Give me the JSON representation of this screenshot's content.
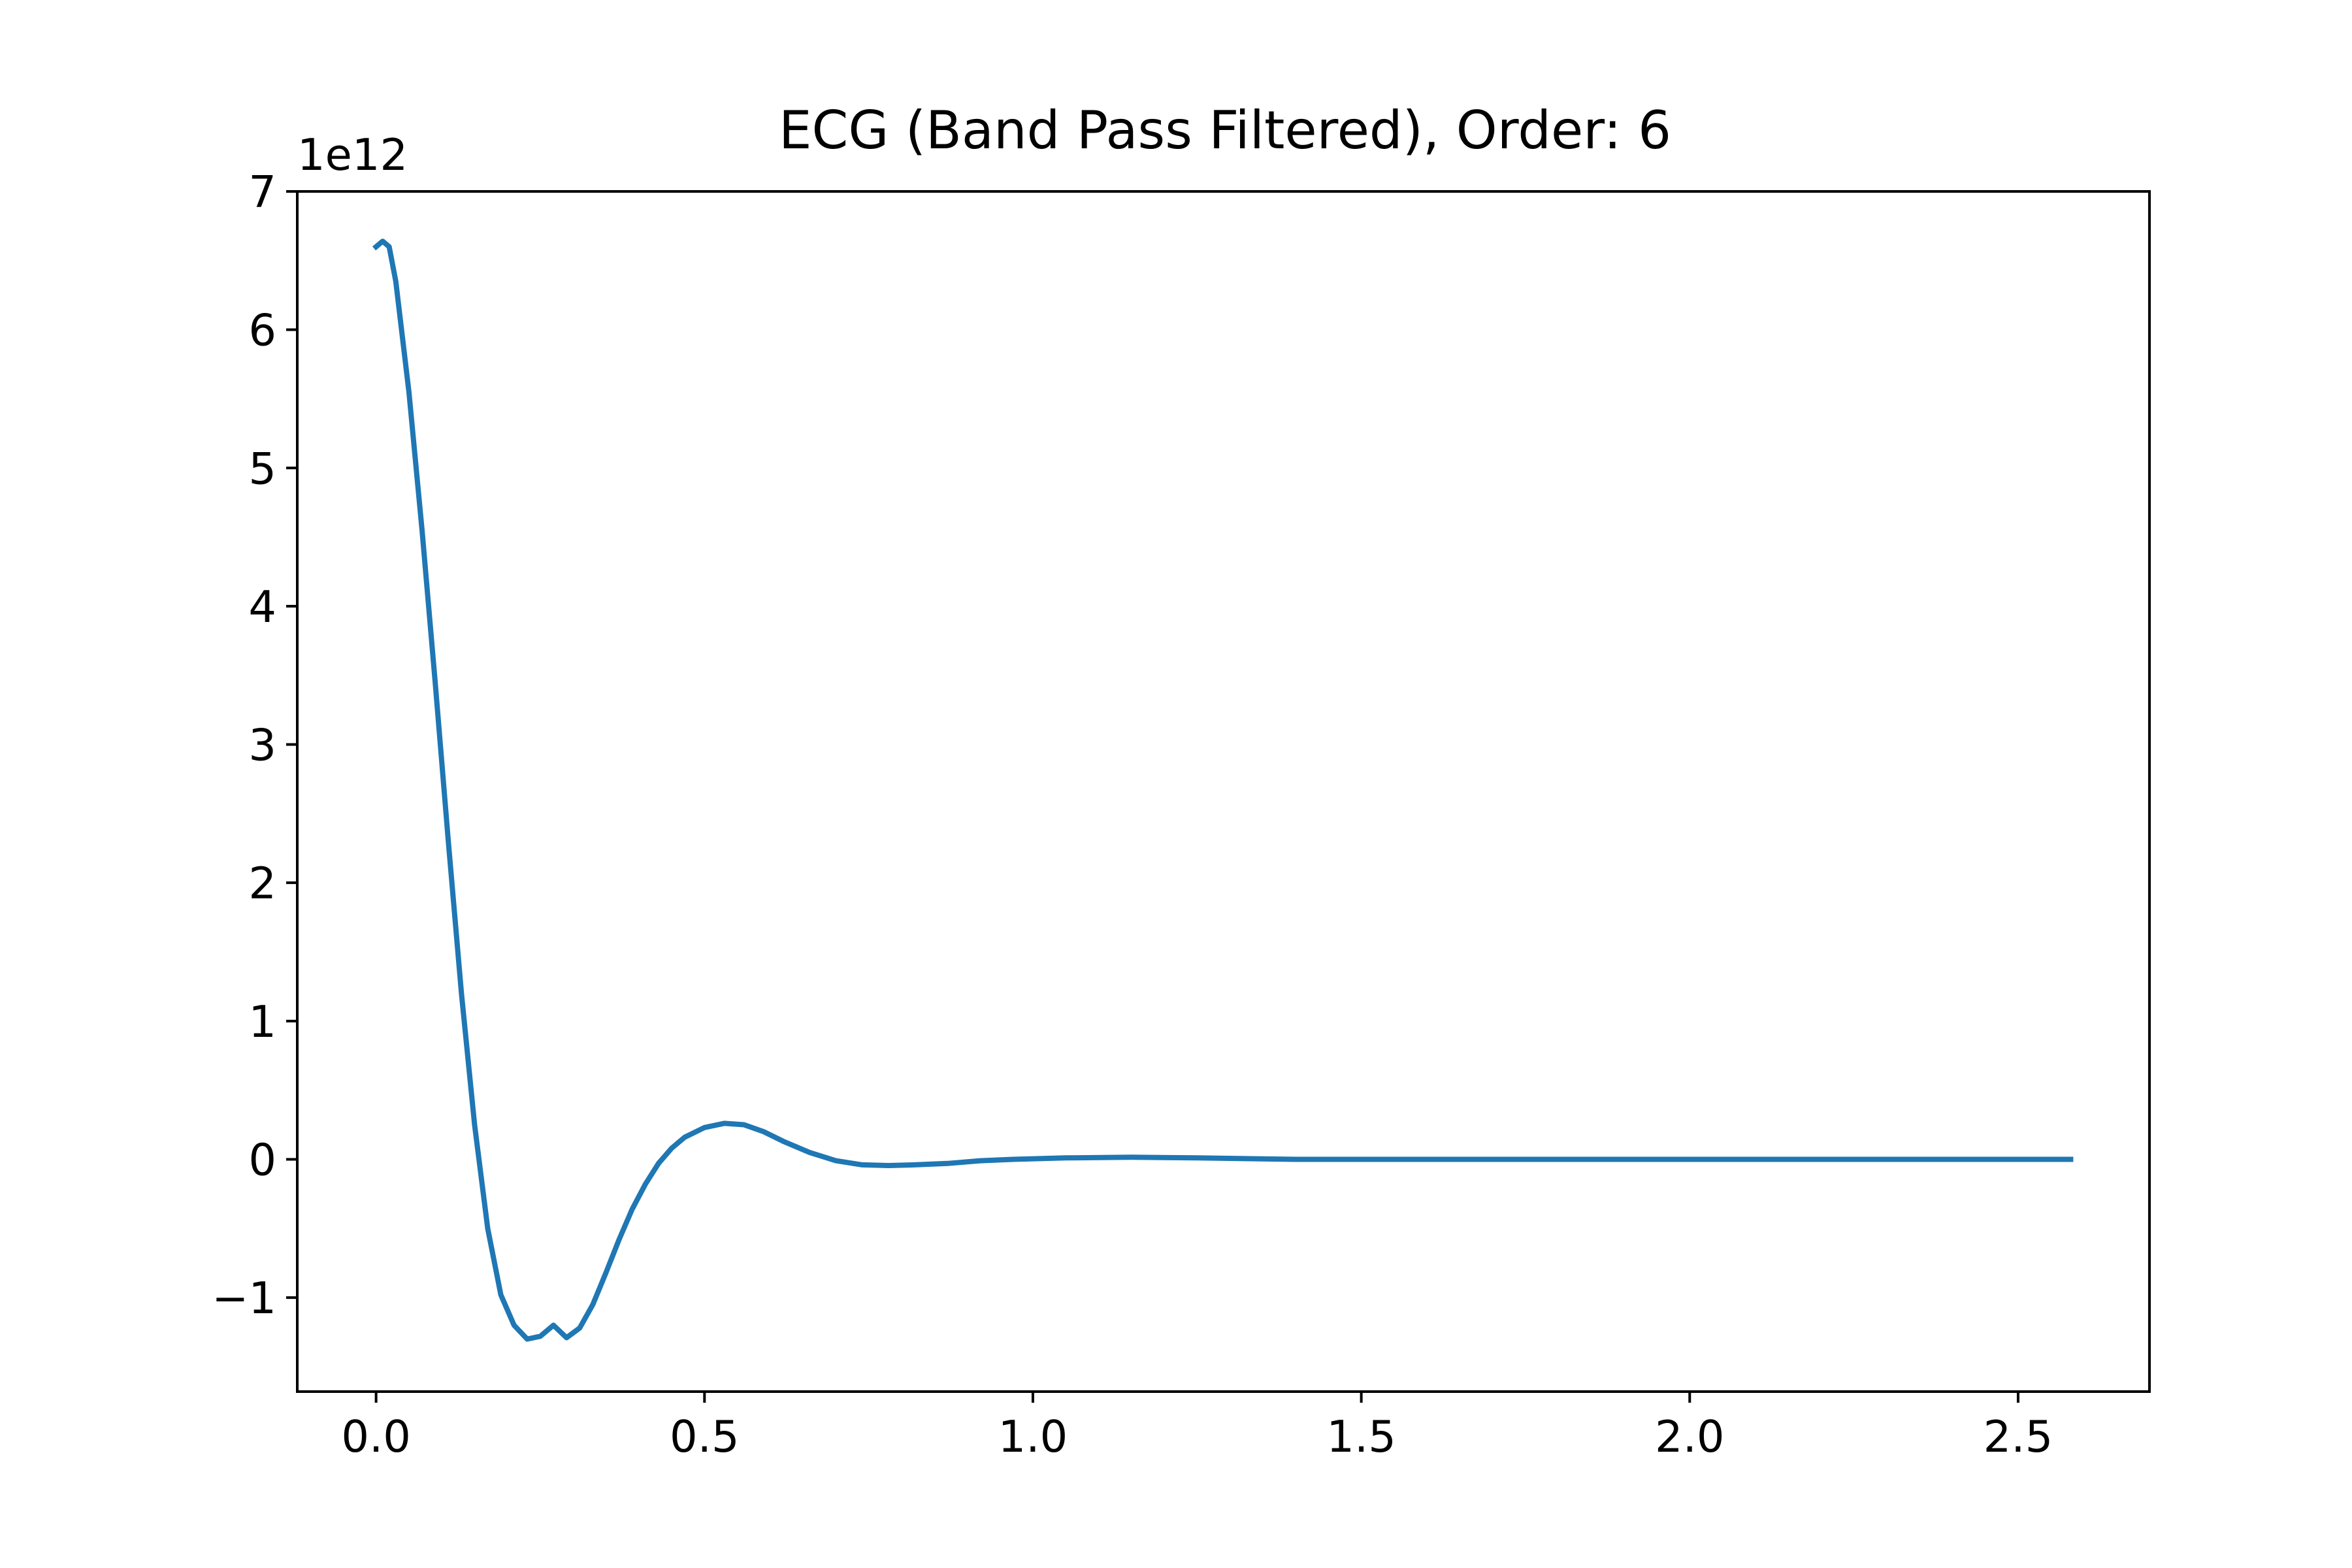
{
  "chart_data": {
    "type": "line",
    "title": "ECG (Band Pass Filtered), Order: 6",
    "xlabel": "",
    "ylabel": "",
    "y_scale_label": "1e12",
    "xlim": [
      -0.12,
      2.7
    ],
    "ylim": [
      -1.68,
      7.0
    ],
    "grid": false,
    "legend": "none",
    "xticks": [
      {
        "value": 0.0,
        "label": "0.0"
      },
      {
        "value": 0.5,
        "label": "0.5"
      },
      {
        "value": 1.0,
        "label": "1.0"
      },
      {
        "value": 1.5,
        "label": "1.5"
      },
      {
        "value": 2.0,
        "label": "2.0"
      },
      {
        "value": 2.5,
        "label": "2.5"
      }
    ],
    "yticks": [
      {
        "value": -1,
        "label": "−1"
      },
      {
        "value": 0,
        "label": "0"
      },
      {
        "value": 1,
        "label": "1"
      },
      {
        "value": 2,
        "label": "2"
      },
      {
        "value": 3,
        "label": "3"
      },
      {
        "value": 4,
        "label": "4"
      },
      {
        "value": 5,
        "label": "5"
      },
      {
        "value": 6,
        "label": "6"
      },
      {
        "value": 7,
        "label": "7"
      }
    ],
    "series": [
      {
        "name": "ECG",
        "color": "#1f77b4",
        "x": [
          0.0,
          0.01,
          0.02,
          0.03,
          0.05,
          0.07,
          0.09,
          0.11,
          0.13,
          0.15,
          0.17,
          0.19,
          0.21,
          0.23,
          0.25,
          0.27,
          0.29,
          0.31,
          0.33,
          0.35,
          0.37,
          0.39,
          0.41,
          0.43,
          0.45,
          0.47,
          0.5,
          0.53,
          0.56,
          0.59,
          0.62,
          0.66,
          0.7,
          0.74,
          0.78,
          0.82,
          0.87,
          0.92,
          0.97,
          1.05,
          1.15,
          1.25,
          1.4,
          1.6,
          1.9,
          2.2,
          2.58
        ],
        "values": [
          6.6,
          6.64,
          6.6,
          6.35,
          5.55,
          4.55,
          3.45,
          2.3,
          1.2,
          0.25,
          -0.5,
          -0.98,
          -1.2,
          -1.3,
          -1.28,
          -1.2,
          -1.29,
          -1.22,
          -1.05,
          -0.82,
          -0.58,
          -0.36,
          -0.18,
          -0.03,
          0.08,
          0.16,
          0.23,
          0.26,
          0.25,
          0.2,
          0.13,
          0.05,
          -0.01,
          -0.04,
          -0.045,
          -0.04,
          -0.03,
          -0.01,
          0.0,
          0.01,
          0.015,
          0.01,
          0.0,
          0.0,
          0.0,
          0.0,
          0.0
        ]
      }
    ]
  }
}
